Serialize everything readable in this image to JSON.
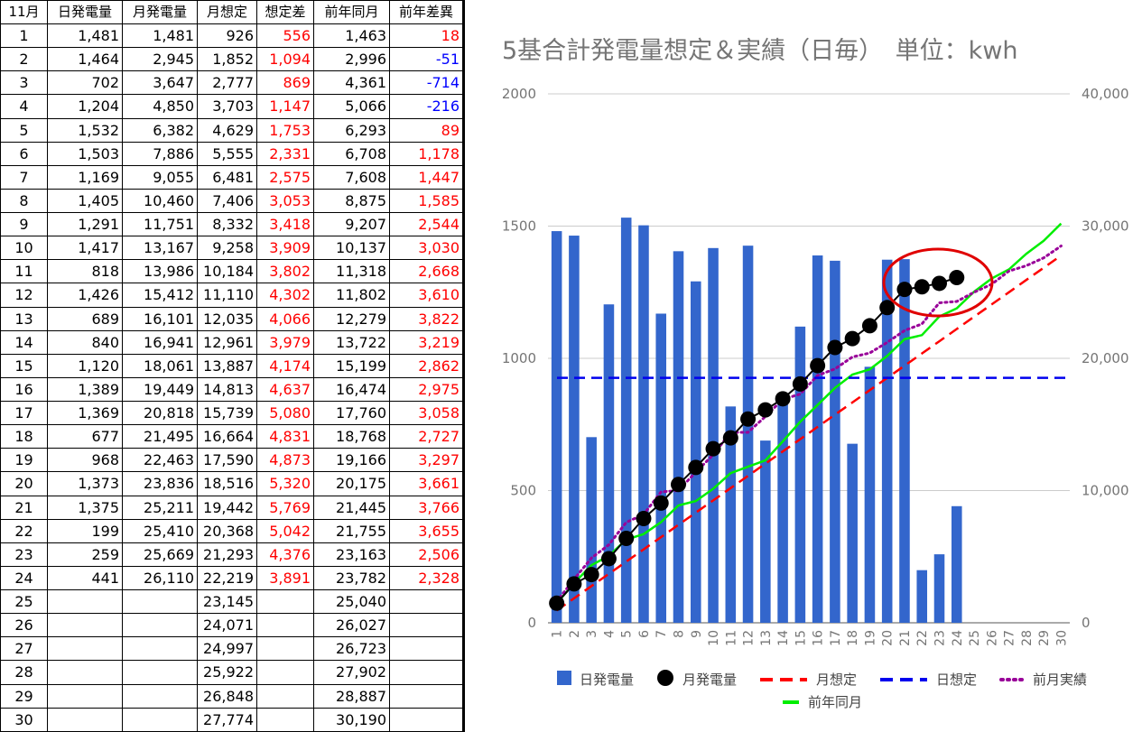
{
  "table": {
    "headers": [
      "11月",
      "日発電量",
      "月発電量",
      "月想定",
      "想定差",
      "前年同月",
      "前年差異"
    ],
    "rows": [
      [
        "1",
        "1,481",
        "1,481",
        "926",
        "556",
        "1,463",
        "18"
      ],
      [
        "2",
        "1,464",
        "2,945",
        "1,852",
        "1,094",
        "2,996",
        "-51"
      ],
      [
        "3",
        "702",
        "3,647",
        "2,777",
        "869",
        "4,361",
        "-714"
      ],
      [
        "4",
        "1,204",
        "4,850",
        "3,703",
        "1,147",
        "5,066",
        "-216"
      ],
      [
        "5",
        "1,532",
        "6,382",
        "4,629",
        "1,753",
        "6,293",
        "89"
      ],
      [
        "6",
        "1,503",
        "7,886",
        "5,555",
        "2,331",
        "6,708",
        "1,178"
      ],
      [
        "7",
        "1,169",
        "9,055",
        "6,481",
        "2,575",
        "7,608",
        "1,447"
      ],
      [
        "8",
        "1,405",
        "10,460",
        "7,406",
        "3,053",
        "8,875",
        "1,585"
      ],
      [
        "9",
        "1,291",
        "11,751",
        "8,332",
        "3,418",
        "9,207",
        "2,544"
      ],
      [
        "10",
        "1,417",
        "13,167",
        "9,258",
        "3,909",
        "10,137",
        "3,030"
      ],
      [
        "11",
        "818",
        "13,986",
        "10,184",
        "3,802",
        "11,318",
        "2,668"
      ],
      [
        "12",
        "1,426",
        "15,412",
        "11,110",
        "4,302",
        "11,802",
        "3,610"
      ],
      [
        "13",
        "689",
        "16,101",
        "12,035",
        "4,066",
        "12,279",
        "3,822"
      ],
      [
        "14",
        "840",
        "16,941",
        "12,961",
        "3,979",
        "13,722",
        "3,219"
      ],
      [
        "15",
        "1,120",
        "18,061",
        "13,887",
        "4,174",
        "15,199",
        "2,862"
      ],
      [
        "16",
        "1,389",
        "19,449",
        "14,813",
        "4,637",
        "16,474",
        "2,975"
      ],
      [
        "17",
        "1,369",
        "20,818",
        "15,739",
        "5,080",
        "17,760",
        "3,058"
      ],
      [
        "18",
        "677",
        "21,495",
        "16,664",
        "4,831",
        "18,768",
        "2,727"
      ],
      [
        "19",
        "968",
        "22,463",
        "17,590",
        "4,873",
        "19,166",
        "3,297"
      ],
      [
        "20",
        "1,373",
        "23,836",
        "18,516",
        "5,320",
        "20,175",
        "3,661"
      ],
      [
        "21",
        "1,375",
        "25,211",
        "19,442",
        "5,769",
        "21,445",
        "3,766"
      ],
      [
        "22",
        "199",
        "25,410",
        "20,368",
        "5,042",
        "21,755",
        "3,655"
      ],
      [
        "23",
        "259",
        "25,669",
        "21,293",
        "4,376",
        "23,163",
        "2,506"
      ],
      [
        "24",
        "441",
        "26,110",
        "22,219",
        "3,891",
        "23,782",
        "2,328"
      ],
      [
        "25",
        "",
        "",
        "23,145",
        "",
        "25,040",
        ""
      ],
      [
        "26",
        "",
        "",
        "24,071",
        "",
        "26,027",
        ""
      ],
      [
        "27",
        "",
        "",
        "24,997",
        "",
        "26,723",
        ""
      ],
      [
        "28",
        "",
        "",
        "25,922",
        "",
        "27,902",
        ""
      ],
      [
        "29",
        "",
        "",
        "26,848",
        "",
        "28,887",
        ""
      ],
      [
        "30",
        "",
        "",
        "27,774",
        "",
        "30,190",
        ""
      ]
    ]
  },
  "colors": {
    "positive": "#ff0000",
    "negative": "#0000ff",
    "bar": "#3366cc",
    "monthly_marker": "#000000",
    "monthly_plan": "#ff0000",
    "daily_plan": "#0000ee",
    "prev_month": "#990099",
    "prev_year": "#00ee00",
    "highlight_circle": "#e00000",
    "grid": "#cccccc",
    "axis_text": "#757575"
  },
  "chart_data": {
    "type": "bar",
    "title": "5基合計発電量想定＆実績（日毎）　単位：kwh",
    "legend_position": "bottom",
    "grid": true,
    "categories": [
      "1",
      "2",
      "3",
      "4",
      "5",
      "6",
      "7",
      "8",
      "9",
      "10",
      "11",
      "12",
      "13",
      "14",
      "15",
      "16",
      "17",
      "18",
      "19",
      "20",
      "21",
      "22",
      "23",
      "24",
      "25",
      "26",
      "27",
      "28",
      "29",
      "30"
    ],
    "y_left": {
      "range": [
        0,
        2000
      ],
      "ticks": [
        "0",
        "500",
        "1000",
        "1500",
        "2000"
      ]
    },
    "y_right": {
      "range": [
        0,
        40000
      ],
      "ticks": [
        "0",
        "10,000",
        "20,000",
        "30,000",
        "40,000"
      ]
    },
    "series": [
      {
        "name": "日発電量",
        "type": "bar",
        "axis": "left",
        "values": [
          1481,
          1464,
          702,
          1204,
          1532,
          1503,
          1169,
          1405,
          1291,
          1417,
          818,
          1426,
          689,
          840,
          1120,
          1389,
          1369,
          677,
          968,
          1373,
          1375,
          199,
          259,
          441,
          null,
          null,
          null,
          null,
          null,
          null
        ]
      },
      {
        "name": "月発電量",
        "type": "line-marker",
        "axis": "right",
        "values": [
          1481,
          2945,
          3647,
          4850,
          6382,
          7886,
          9055,
          10460,
          11751,
          13167,
          13986,
          15412,
          16101,
          16941,
          18061,
          19449,
          20818,
          21495,
          22463,
          23836,
          25211,
          25410,
          25669,
          26110,
          null,
          null,
          null,
          null,
          null,
          null
        ]
      },
      {
        "name": "月想定",
        "type": "dashed-line",
        "axis": "right",
        "values": [
          926,
          1852,
          2777,
          3703,
          4629,
          5555,
          6481,
          7406,
          8332,
          9258,
          10184,
          11110,
          12035,
          12961,
          13887,
          14813,
          15739,
          16664,
          17590,
          18516,
          19442,
          20368,
          21293,
          22219,
          23145,
          24071,
          24997,
          25922,
          26848,
          27774
        ]
      },
      {
        "name": "日想定",
        "type": "dashed-line",
        "axis": "left",
        "values": [
          926,
          926,
          926,
          926,
          926,
          926,
          926,
          926,
          926,
          926,
          926,
          926,
          926,
          926,
          926,
          926,
          926,
          926,
          926,
          926,
          926,
          926,
          926,
          926,
          926,
          926,
          926,
          926,
          926,
          926
        ]
      },
      {
        "name": "前月実績",
        "type": "dotted-line",
        "axis": "right",
        "values": [
          1600,
          3300,
          4900,
          5900,
          7600,
          8200,
          9900,
          10000,
          11400,
          12700,
          14400,
          14400,
          15600,
          16900,
          17300,
          18700,
          19200,
          20100,
          20400,
          21200,
          22100,
          22600,
          24200,
          24300,
          25000,
          25600,
          26600,
          27000,
          27600,
          28500
        ]
      },
      {
        "name": "前年同月",
        "type": "line",
        "axis": "right",
        "values": [
          1463,
          2996,
          4361,
          5066,
          6293,
          6708,
          7608,
          8875,
          9207,
          10137,
          11318,
          11802,
          12279,
          13722,
          15199,
          16474,
          17760,
          18768,
          19166,
          20175,
          21445,
          21755,
          23163,
          23782,
          25040,
          26027,
          26723,
          27902,
          28887,
          30190
        ]
      }
    ]
  }
}
